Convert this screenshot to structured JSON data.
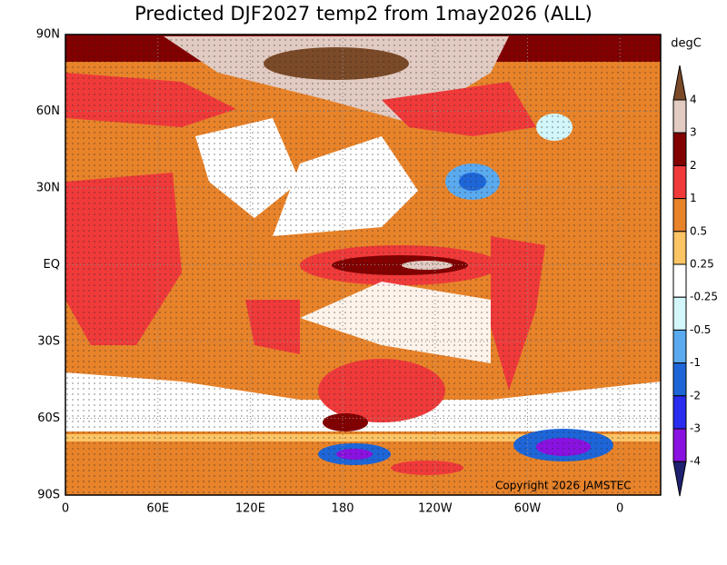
{
  "title": "Predicted DJF2027 temp2 from 1may2026 (ALL)",
  "map": {
    "lat_ticks": [
      {
        "value": 90,
        "label": "90N"
      },
      {
        "value": 60,
        "label": "60N"
      },
      {
        "value": 30,
        "label": "30N"
      },
      {
        "value": 0,
        "label": "EQ"
      },
      {
        "value": -30,
        "label": "30S"
      },
      {
        "value": -60,
        "label": "60S"
      },
      {
        "value": -90,
        "label": "90S"
      }
    ],
    "lon_ticks": [
      {
        "value": 0,
        "label": "0"
      },
      {
        "value": 60,
        "label": "60E"
      },
      {
        "value": 120,
        "label": "120E"
      },
      {
        "value": 180,
        "label": "180"
      },
      {
        "value": 240,
        "label": "120W"
      },
      {
        "value": 300,
        "label": "60W"
      },
      {
        "value": 360,
        "label": "0"
      }
    ],
    "copyright": "Copyright 2026 JAMSTEC"
  },
  "colorbar": {
    "unit": "degC",
    "levels": [
      4,
      3,
      2,
      1,
      0.5,
      0.25,
      -0.25,
      -0.5,
      -1,
      -2,
      -3,
      -4
    ],
    "colors": [
      "#7b4a28",
      "#e2cbc2",
      "#820000",
      "#f03a3a",
      "#e8832a",
      "#fbc465",
      "#ffffff",
      "#d2f6fa",
      "#5aaaf0",
      "#1e66d8",
      "#2a2cf0",
      "#8a12e0",
      "#1e2070"
    ]
  }
}
